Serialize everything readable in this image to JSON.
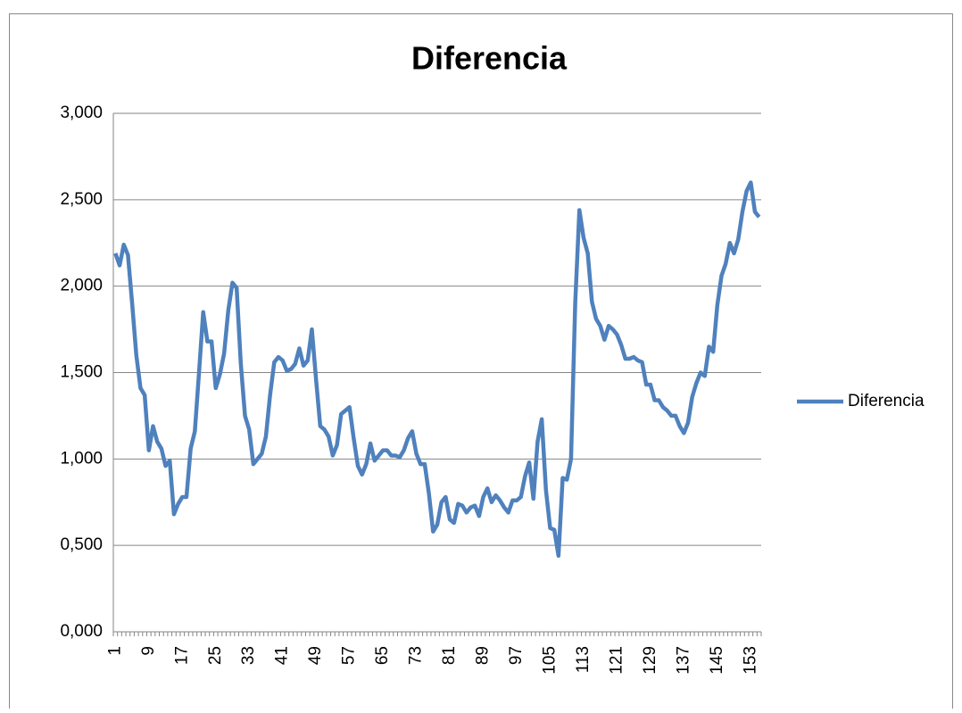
{
  "chart_data": {
    "type": "line",
    "title": "Diferencia",
    "categories": [
      "1",
      null,
      null,
      null,
      null,
      null,
      null,
      null,
      "9",
      null,
      null,
      null,
      null,
      null,
      null,
      null,
      "17",
      null,
      null,
      null,
      null,
      null,
      null,
      null,
      "25",
      null,
      null,
      null,
      null,
      null,
      null,
      null,
      "33",
      null,
      null,
      null,
      null,
      null,
      null,
      null,
      "41",
      null,
      null,
      null,
      null,
      null,
      null,
      null,
      "49",
      null,
      null,
      null,
      null,
      null,
      null,
      null,
      "57",
      null,
      null,
      null,
      null,
      null,
      null,
      null,
      "65",
      null,
      null,
      null,
      null,
      null,
      null,
      null,
      "73",
      null,
      null,
      null,
      null,
      null,
      null,
      null,
      "81",
      null,
      null,
      null,
      null,
      null,
      null,
      null,
      "89",
      null,
      null,
      null,
      null,
      null,
      null,
      null,
      "97",
      null,
      null,
      null,
      null,
      null,
      null,
      null,
      "105",
      null,
      null,
      null,
      null,
      null,
      null,
      null,
      "113",
      null,
      null,
      null,
      null,
      null,
      null,
      null,
      "121",
      null,
      null,
      null,
      null,
      null,
      null,
      null,
      "129",
      null,
      null,
      null,
      null,
      null,
      null,
      null,
      "137",
      null,
      null,
      null,
      null,
      null,
      null,
      null,
      "145",
      null,
      null,
      null,
      null,
      null,
      null,
      null,
      "153",
      null,
      null
    ],
    "series": [
      {
        "name": "Diferencia",
        "color": "#4f81bd",
        "values": [
          2.19,
          2.12,
          2.24,
          2.18,
          1.9,
          1.6,
          1.41,
          1.37,
          1.05,
          1.19,
          1.1,
          1.06,
          0.96,
          0.99,
          0.68,
          0.74,
          0.78,
          0.78,
          1.06,
          1.16,
          1.5,
          1.85,
          1.68,
          1.68,
          1.41,
          1.49,
          1.61,
          1.86,
          2.02,
          1.99,
          1.55,
          1.25,
          1.17,
          0.97,
          1.0,
          1.03,
          1.13,
          1.37,
          1.56,
          1.59,
          1.57,
          1.51,
          1.52,
          1.55,
          1.64,
          1.54,
          1.57,
          1.75,
          1.46,
          1.19,
          1.17,
          1.13,
          1.02,
          1.08,
          1.26,
          1.28,
          1.3,
          1.12,
          0.96,
          0.91,
          0.97,
          1.09,
          0.99,
          1.02,
          1.05,
          1.05,
          1.02,
          1.02,
          1.01,
          1.05,
          1.12,
          1.16,
          1.03,
          0.97,
          0.97,
          0.8,
          0.58,
          0.62,
          0.75,
          0.78,
          0.65,
          0.63,
          0.74,
          0.73,
          0.69,
          0.72,
          0.73,
          0.67,
          0.78,
          0.83,
          0.75,
          0.79,
          0.76,
          0.72,
          0.69,
          0.76,
          0.76,
          0.78,
          0.9,
          0.98,
          0.77,
          1.1,
          1.23,
          0.82,
          0.6,
          0.59,
          0.44,
          0.89,
          0.88,
          1.0,
          1.9,
          2.44,
          2.28,
          2.19,
          1.91,
          1.81,
          1.77,
          1.69,
          1.77,
          1.75,
          1.72,
          1.66,
          1.58,
          1.58,
          1.59,
          1.57,
          1.56,
          1.43,
          1.43,
          1.34,
          1.34,
          1.3,
          1.28,
          1.25,
          1.25,
          1.19,
          1.15,
          1.21,
          1.36,
          1.44,
          1.5,
          1.48,
          1.65,
          1.62,
          1.89,
          2.06,
          2.13,
          2.25,
          2.19,
          2.27,
          2.43,
          2.55,
          2.6,
          2.43,
          2.4
        ]
      }
    ],
    "ylim": [
      0,
      3
    ],
    "yticks": [
      {
        "value": 0,
        "label": "0,000"
      },
      {
        "value": 0.5,
        "label": "0,500"
      },
      {
        "value": 1,
        "label": "1,000"
      },
      {
        "value": 1.5,
        "label": "1,500"
      },
      {
        "value": 2,
        "label": "2,000"
      },
      {
        "value": 2.5,
        "label": "2,500"
      },
      {
        "value": 3,
        "label": "3,000"
      }
    ],
    "grid": true,
    "legend": "right"
  }
}
